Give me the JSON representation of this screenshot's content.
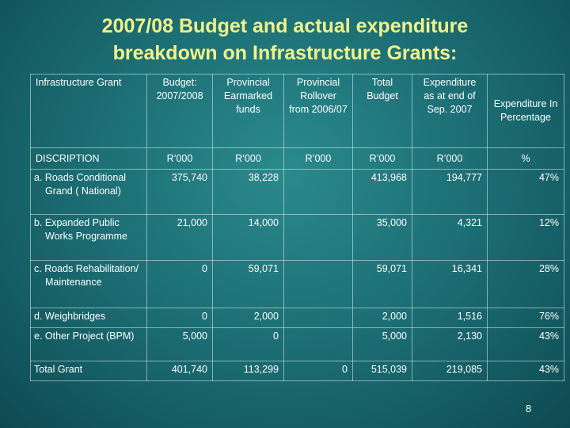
{
  "header": {
    "title": "2007/08 Budget and actual expenditure breakdown on Infrastructure Grants:"
  },
  "table": {
    "columns": [
      "Infrastructure Grant",
      "Budget: 2007/2008",
      "Provincial Earmarked funds",
      "Provincial Rollover from 2006/07",
      "Total Budget",
      "Expenditure as at end of Sep. 2007",
      "Expenditure In Percentage"
    ],
    "units": [
      "DISCRIPTION",
      "R’000",
      "R’000",
      "R’000",
      "R’000",
      "R’000",
      "%"
    ],
    "rows": [
      [
        "a. Roads Conditional Grand ( National)",
        "375,740",
        "38,228",
        null,
        "413,968",
        "194,777",
        "47%"
      ],
      [
        "b. Expanded Public Works Programme",
        "21,000",
        "14,000",
        null,
        "35,000",
        "4,321",
        "12%"
      ],
      [
        "c. Roads Rehabilitation/ Maintenance",
        "0",
        "59,071",
        null,
        "59,071",
        "16,341",
        "28%"
      ],
      [
        "d. Weighbridges",
        "0",
        "2,000",
        null,
        "2,000",
        "1,516",
        "76%"
      ],
      [
        "e. Other Project (BPM)",
        "5,000",
        "0",
        null,
        "5,000",
        "2,130",
        "43%"
      ],
      [
        "Total Grant",
        "401,740",
        "113,299",
        "0",
        "515,039",
        "219,085",
        "43%"
      ]
    ]
  },
  "footer": {
    "page_number": "8"
  }
}
